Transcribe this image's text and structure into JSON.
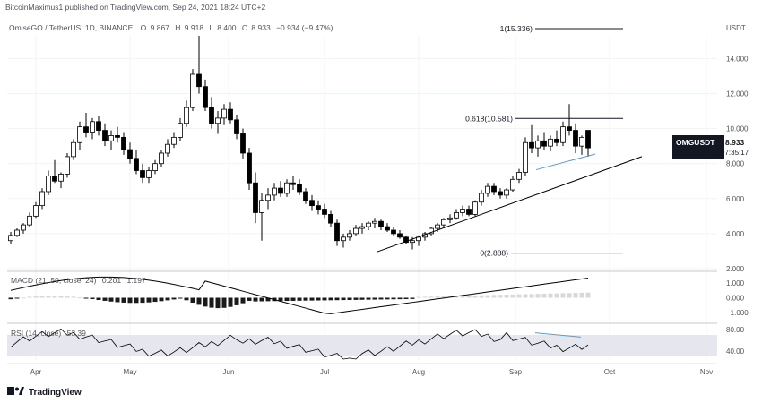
{
  "header": {
    "publisher_line": "BitcoinMaximus1 published on TradingView.com, Sep 24, 2021 18:24 UTC+2",
    "symbol_line": "OmiseGO / TetherUS, 1D, BINANCE",
    "ohlc": {
      "o_label": "O",
      "o_value": "9.867",
      "h_label": "H",
      "h_value": "9.918",
      "l_label": "L",
      "l_value": "8.400",
      "c_label": "C",
      "c_value": "8.933",
      "change": "−0.934 (−9.47%)"
    }
  },
  "footer": {
    "brand": "TradingView"
  },
  "colors": {
    "up": "#ffffff",
    "down": "#000000",
    "trendline": "#000000",
    "channel": "#5b9bd5",
    "macd_line": "#000000",
    "rsi_line": "#000000",
    "price_tag_bg": "#131722"
  },
  "chart_data": {
    "type": "candlestick",
    "symbol": "OMGUSDT",
    "currency": "USDT",
    "price_tag": {
      "label": "OMGUSDT",
      "value": "8.933",
      "countdown": "07:35:17"
    },
    "x_ticks": [
      "Apr",
      "May",
      "Jun",
      "Jul",
      "Aug",
      "Sep",
      "Oct",
      "Nov"
    ],
    "price_axis": {
      "ticks": [
        "14.000",
        "12.000",
        "10.000",
        "8.000",
        "6.000",
        "4.000",
        "2.000"
      ],
      "ylim": [
        2.0,
        15.3
      ]
    },
    "fib_levels": [
      {
        "label": "1(15.336)",
        "value": 15.336
      },
      {
        "label": "0.618(10.581)",
        "value": 10.581
      },
      {
        "label": "0(2.888)",
        "value": 2.888
      }
    ],
    "candles": [
      [
        3.6,
        4.1,
        3.4,
        3.9
      ],
      [
        3.9,
        4.3,
        3.8,
        4.2
      ],
      [
        4.2,
        4.6,
        4.0,
        4.5
      ],
      [
        4.5,
        5.2,
        4.4,
        5.0
      ],
      [
        5.0,
        5.8,
        4.9,
        5.6
      ],
      [
        5.6,
        6.6,
        5.4,
        6.4
      ],
      [
        6.4,
        7.6,
        6.2,
        7.3
      ],
      [
        7.3,
        8.2,
        6.9,
        7.0
      ],
      [
        7.0,
        7.5,
        6.6,
        7.4
      ],
      [
        7.4,
        8.6,
        7.2,
        8.4
      ],
      [
        8.4,
        9.4,
        8.2,
        9.2
      ],
      [
        9.2,
        10.4,
        8.8,
        10.1
      ],
      [
        10.1,
        10.9,
        9.5,
        9.8
      ],
      [
        9.8,
        10.6,
        9.4,
        10.4
      ],
      [
        10.4,
        10.7,
        9.6,
        9.9
      ],
      [
        9.9,
        10.3,
        9.0,
        9.3
      ],
      [
        9.3,
        9.9,
        8.8,
        9.6
      ],
      [
        9.6,
        10.1,
        9.2,
        9.5
      ],
      [
        9.5,
        9.8,
        8.5,
        8.8
      ],
      [
        8.8,
        9.2,
        8.0,
        8.3
      ],
      [
        8.3,
        8.8,
        7.4,
        7.6
      ],
      [
        7.6,
        8.0,
        6.9,
        7.2
      ],
      [
        7.2,
        7.8,
        6.9,
        7.6
      ],
      [
        7.6,
        8.2,
        7.4,
        8.0
      ],
      [
        8.0,
        8.8,
        7.8,
        8.6
      ],
      [
        8.6,
        9.4,
        8.4,
        9.1
      ],
      [
        9.1,
        9.8,
        8.9,
        9.5
      ],
      [
        9.5,
        10.6,
        9.3,
        10.3
      ],
      [
        10.3,
        11.6,
        10.1,
        11.2
      ],
      [
        11.2,
        13.4,
        11.0,
        13.1
      ],
      [
        13.1,
        15.3,
        12.0,
        12.4
      ],
      [
        12.4,
        12.8,
        11.0,
        11.2
      ],
      [
        11.2,
        11.8,
        10.0,
        10.3
      ],
      [
        10.3,
        11.0,
        9.7,
        10.6
      ],
      [
        10.6,
        11.4,
        10.2,
        11.1
      ],
      [
        11.1,
        11.5,
        10.3,
        10.5
      ],
      [
        10.5,
        10.8,
        9.4,
        9.7
      ],
      [
        9.7,
        10.0,
        8.3,
        8.6
      ],
      [
        8.6,
        8.9,
        6.5,
        6.9
      ],
      [
        6.9,
        7.5,
        4.6,
        5.2
      ],
      [
        5.2,
        6.3,
        3.6,
        5.9
      ],
      [
        5.9,
        6.6,
        5.4,
        6.2
      ],
      [
        6.2,
        6.9,
        5.9,
        6.6
      ],
      [
        6.6,
        7.0,
        6.1,
        6.3
      ],
      [
        6.3,
        7.1,
        6.1,
        6.9
      ],
      [
        6.9,
        7.3,
        6.5,
        6.8
      ],
      [
        6.8,
        7.1,
        6.2,
        6.4
      ],
      [
        6.4,
        6.6,
        5.7,
        5.9
      ],
      [
        5.9,
        6.2,
        5.3,
        5.6
      ],
      [
        5.6,
        5.9,
        5.1,
        5.4
      ],
      [
        5.4,
        5.7,
        4.9,
        5.1
      ],
      [
        5.1,
        5.3,
        4.4,
        4.6
      ],
      [
        4.6,
        4.8,
        3.3,
        3.6
      ],
      [
        3.6,
        4.0,
        3.2,
        3.8
      ],
      [
        3.8,
        4.2,
        3.6,
        4.0
      ],
      [
        4.0,
        4.5,
        3.9,
        4.3
      ],
      [
        4.3,
        4.6,
        4.0,
        4.4
      ],
      [
        4.4,
        4.7,
        4.2,
        4.6
      ],
      [
        4.6,
        4.9,
        4.3,
        4.7
      ],
      [
        4.7,
        4.8,
        4.2,
        4.4
      ],
      [
        4.4,
        4.6,
        4.1,
        4.2
      ],
      [
        4.2,
        4.4,
        3.9,
        4.0
      ],
      [
        4.0,
        4.2,
        3.7,
        3.8
      ],
      [
        3.8,
        3.9,
        3.4,
        3.5
      ],
      [
        3.5,
        3.8,
        3.1,
        3.6
      ],
      [
        3.6,
        3.9,
        3.3,
        3.8
      ],
      [
        3.8,
        4.1,
        3.6,
        4.0
      ],
      [
        4.0,
        4.4,
        3.9,
        4.3
      ],
      [
        4.3,
        4.6,
        4.1,
        4.5
      ],
      [
        4.5,
        4.9,
        4.3,
        4.8
      ],
      [
        4.8,
        5.1,
        4.6,
        4.9
      ],
      [
        4.9,
        5.4,
        4.8,
        5.2
      ],
      [
        5.2,
        5.6,
        5.0,
        5.4
      ],
      [
        5.4,
        5.6,
        5.0,
        5.1
      ],
      [
        5.1,
        5.9,
        5.0,
        5.8
      ],
      [
        5.8,
        6.5,
        5.6,
        6.3
      ],
      [
        6.3,
        6.9,
        6.1,
        6.7
      ],
      [
        6.7,
        6.9,
        6.2,
        6.4
      ],
      [
        6.4,
        6.6,
        6.0,
        6.2
      ],
      [
        6.2,
        6.6,
        6.0,
        6.5
      ],
      [
        6.5,
        7.3,
        6.4,
        7.1
      ],
      [
        7.1,
        7.7,
        6.9,
        7.5
      ],
      [
        7.5,
        9.5,
        7.3,
        9.2
      ],
      [
        9.2,
        10.2,
        8.6,
        8.9
      ],
      [
        8.9,
        9.6,
        8.4,
        9.3
      ],
      [
        9.3,
        9.8,
        8.8,
        9.0
      ],
      [
        9.0,
        9.6,
        8.7,
        9.4
      ],
      [
        9.4,
        9.9,
        9.0,
        9.2
      ],
      [
        9.2,
        10.4,
        9.0,
        10.1
      ],
      [
        10.1,
        11.4,
        9.6,
        9.9
      ],
      [
        9.9,
        10.3,
        8.6,
        9.0
      ],
      [
        9.0,
        9.6,
        8.5,
        9.5
      ],
      [
        9.9,
        9.9,
        8.4,
        8.9
      ]
    ],
    "macd": {
      "label": "MACD (21, 50, close, 24)",
      "values": [
        "0.201",
        "1.197"
      ],
      "ticks": [
        "1.000",
        "0.000",
        "−1.000"
      ],
      "ylim": [
        -1.6,
        1.6
      ]
    },
    "rsi": {
      "label": "RSI (14, close)",
      "value": "53.39",
      "ticks": [
        "80.00",
        "40.00"
      ],
      "ylim": [
        20,
        90
      ]
    }
  }
}
